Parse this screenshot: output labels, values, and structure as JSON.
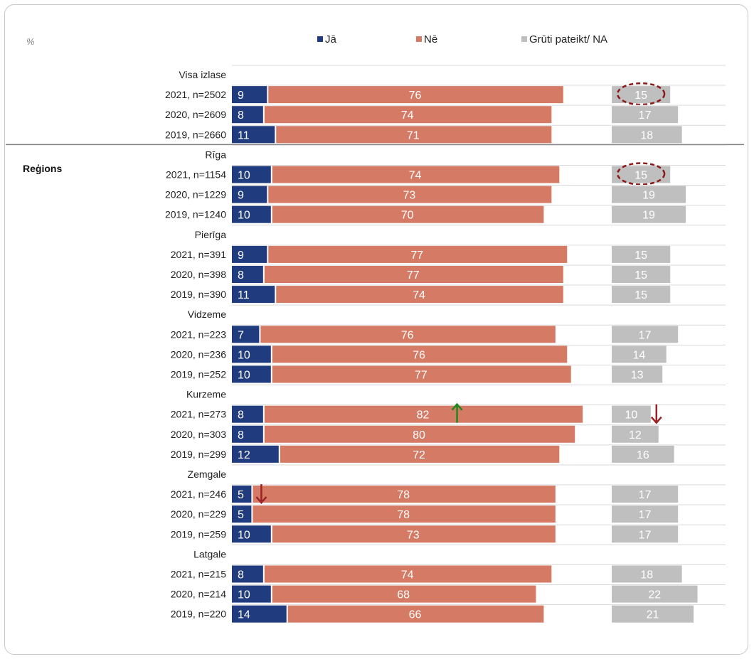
{
  "chart_data": {
    "type": "bar",
    "stacked": true,
    "orientation": "horizontal",
    "unit_label": "%",
    "legend": {
      "position": "top",
      "items": [
        {
          "name": "Jā",
          "color": "#203C7E"
        },
        {
          "name": "Nē",
          "color": "#D57A65"
        },
        {
          "name": "Grūti pateikt/ NA",
          "color": "#BFBFBF"
        }
      ]
    },
    "side_label": "Reģions",
    "groups": [
      {
        "name": "Visa izlase",
        "rows": [
          {
            "label": "2021, n=2502",
            "ja": 9,
            "ne": 76,
            "na": 15,
            "na_circled": true
          },
          {
            "label": "2020, n=2609",
            "ja": 8,
            "ne": 74,
            "na": 17
          },
          {
            "label": "2019, n=2660",
            "ja": 11,
            "ne": 71,
            "na": 18
          }
        ]
      },
      {
        "name": "Rīga",
        "rows": [
          {
            "label": "2021, n=1154",
            "ja": 10,
            "ne": 74,
            "na": 15,
            "na_circled": true
          },
          {
            "label": "2020, n=1229",
            "ja": 9,
            "ne": 73,
            "na": 19
          },
          {
            "label": "2019, n=1240",
            "ja": 10,
            "ne": 70,
            "na": 19
          }
        ]
      },
      {
        "name": "Pierīga",
        "rows": [
          {
            "label": "2021, n=391",
            "ja": 9,
            "ne": 77,
            "na": 15
          },
          {
            "label": "2020, n=398",
            "ja": 8,
            "ne": 77,
            "na": 15
          },
          {
            "label": "2019, n=390",
            "ja": 11,
            "ne": 74,
            "na": 15
          }
        ]
      },
      {
        "name": "Vidzeme",
        "rows": [
          {
            "label": "2021, n=223",
            "ja": 7,
            "ne": 76,
            "na": 17
          },
          {
            "label": "2020, n=236",
            "ja": 10,
            "ne": 76,
            "na": 14
          },
          {
            "label": "2019, n=252",
            "ja": 10,
            "ne": 77,
            "na": 13
          }
        ]
      },
      {
        "name": "Kurzeme",
        "rows": [
          {
            "label": "2021, n=273",
            "ja": 8,
            "ne": 82,
            "na": 10,
            "ne_arrow": "up",
            "na_arrow": "down"
          },
          {
            "label": "2020, n=303",
            "ja": 8,
            "ne": 80,
            "na": 12
          },
          {
            "label": "2019, n=299",
            "ja": 12,
            "ne": 72,
            "na": 16
          }
        ]
      },
      {
        "name": "Zemgale",
        "rows": [
          {
            "label": "2021, n=246",
            "ja": 5,
            "ne": 78,
            "na": 17,
            "ja_arrow": "down"
          },
          {
            "label": "2020, n=229",
            "ja": 5,
            "ne": 78,
            "na": 17
          },
          {
            "label": "2019, n=259",
            "ja": 10,
            "ne": 73,
            "na": 17
          }
        ]
      },
      {
        "name": "Latgale",
        "rows": [
          {
            "label": "2021, n=215",
            "ja": 8,
            "ne": 74,
            "na": 18
          },
          {
            "label": "2020, n=214",
            "ja": 10,
            "ne": 68,
            "na": 22
          },
          {
            "label": "2019, n=220",
            "ja": 14,
            "ne": 66,
            "na": 21
          }
        ]
      }
    ],
    "arrow_colors": {
      "up": "#1E8A1E",
      "down": "#9B2226"
    },
    "circle_color": "#8B1A1A"
  }
}
